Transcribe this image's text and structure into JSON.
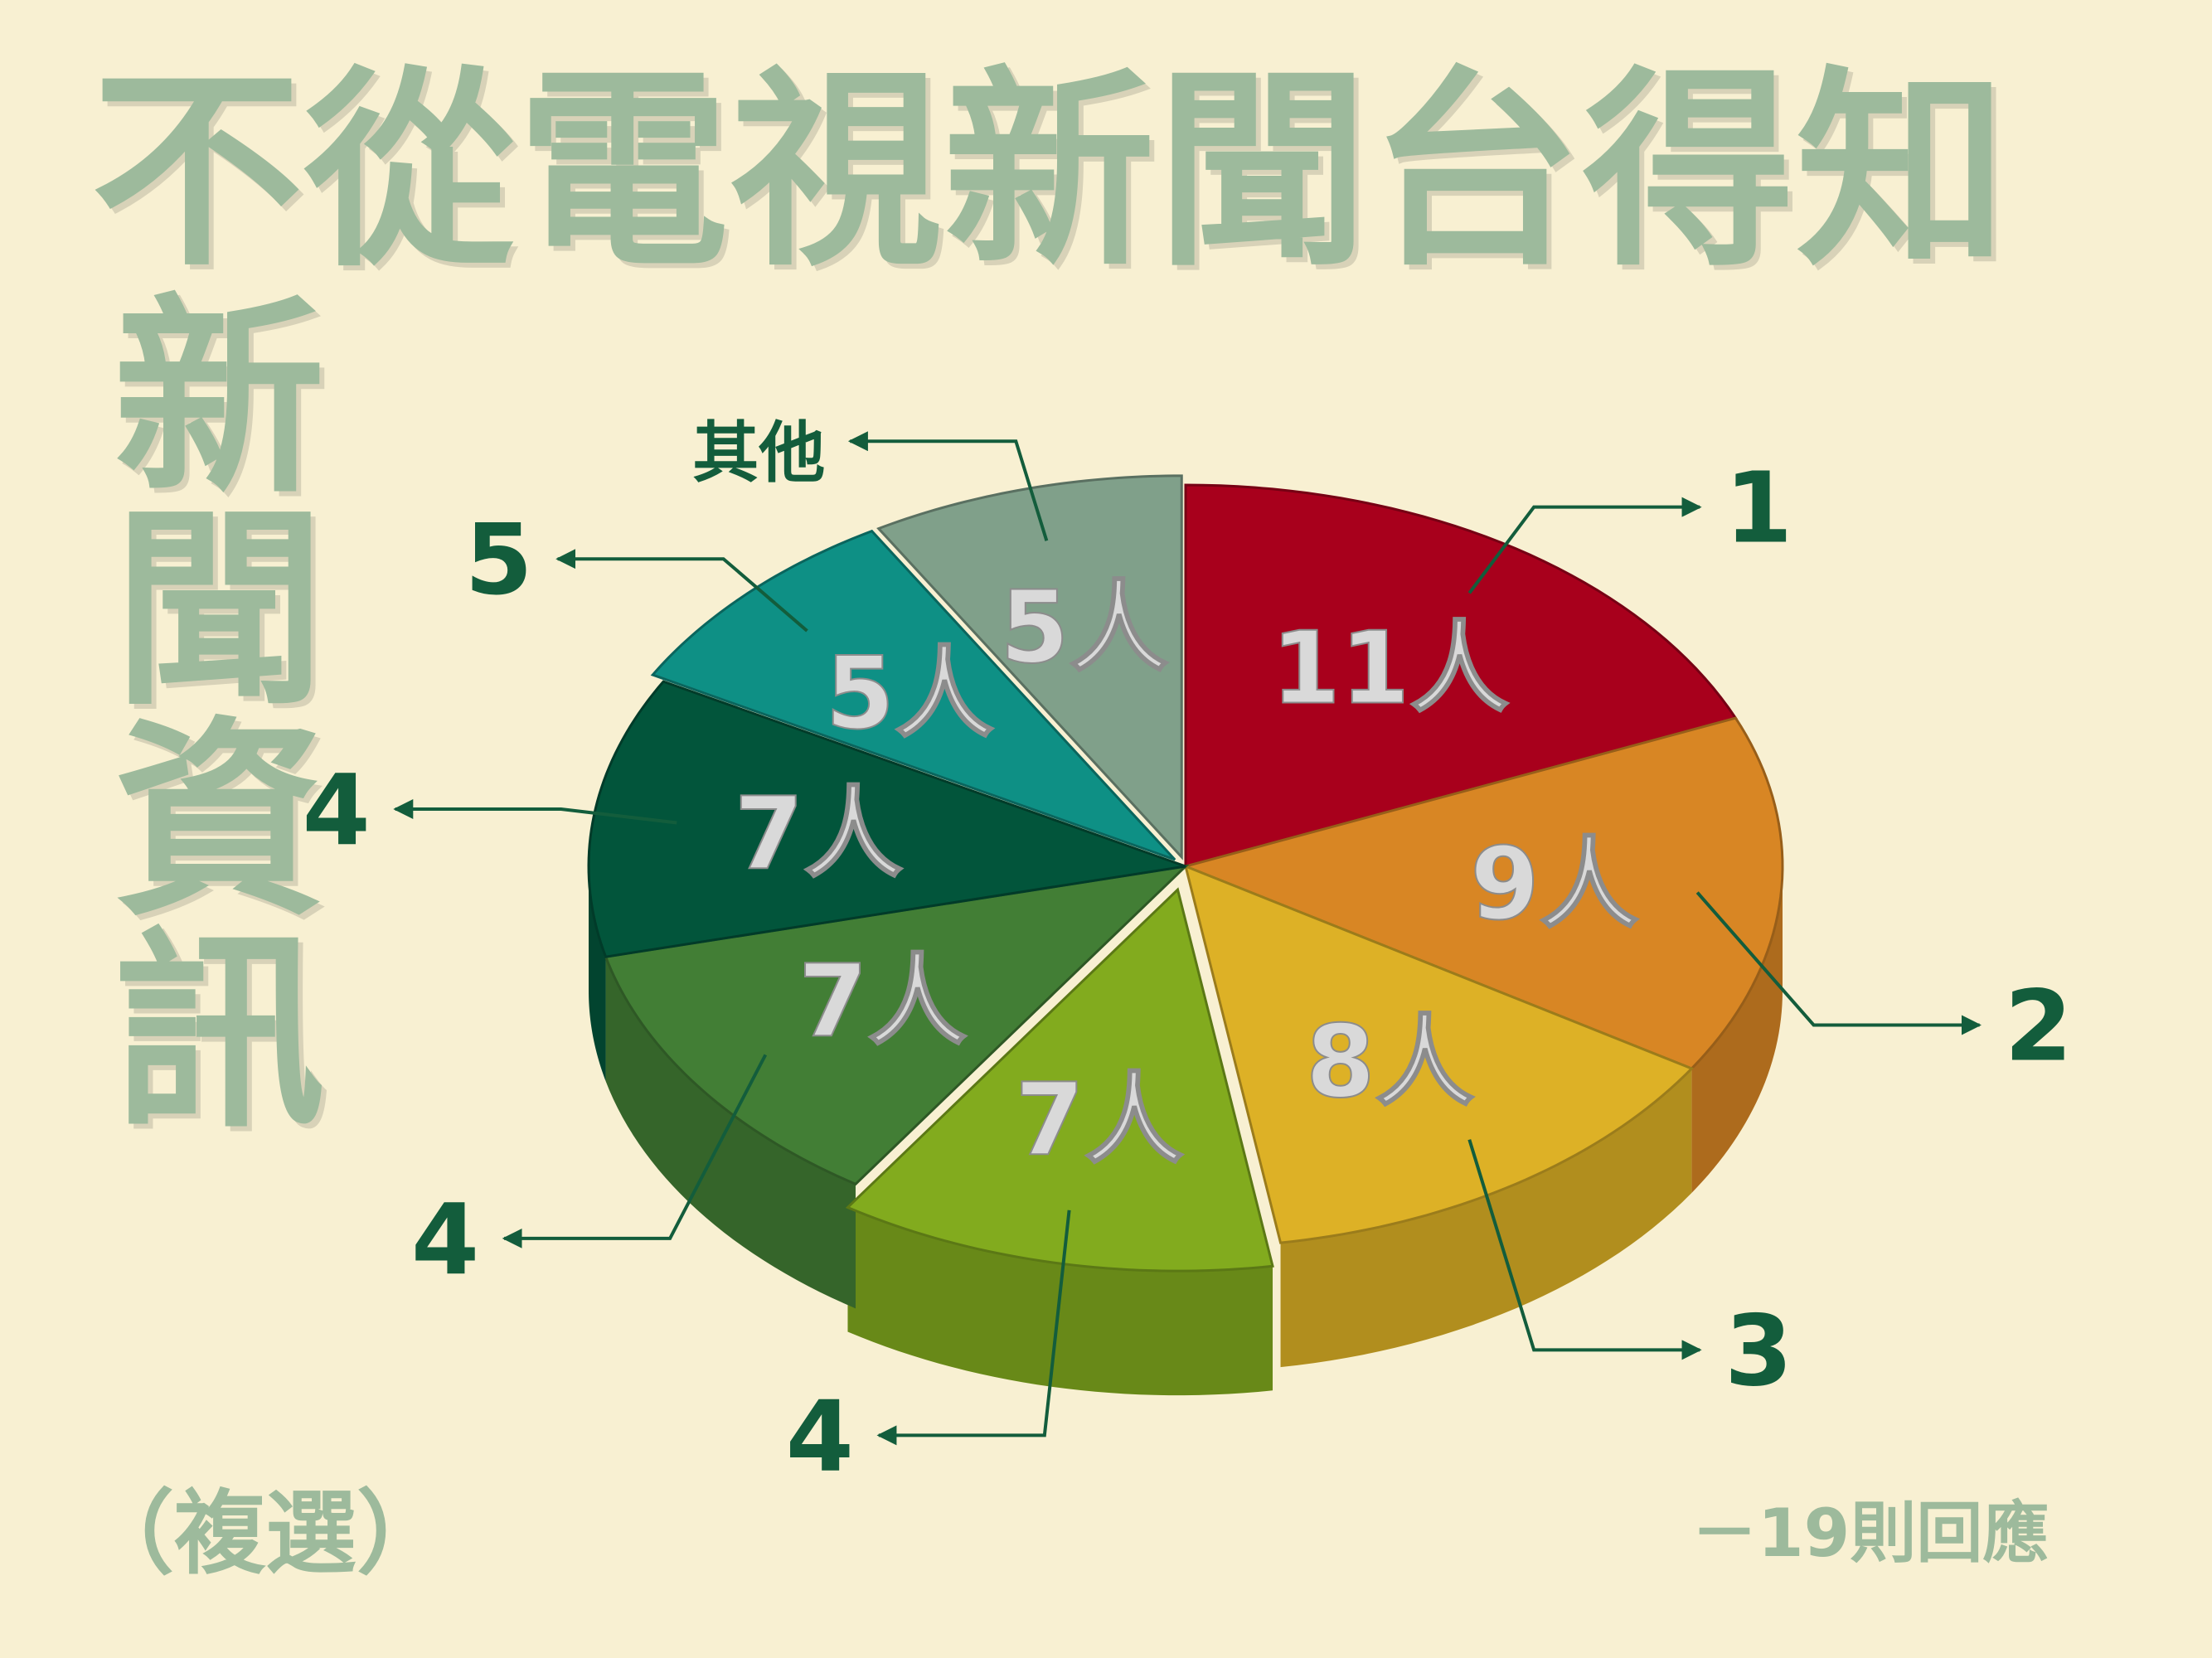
{
  "title": {
    "line1": "不從電視新聞台得知",
    "line2": "新聞資訊"
  },
  "note_multi": "（複選）",
  "responses": "－19則回應",
  "chart_data": {
    "type": "pie",
    "unit": "人",
    "slices": [
      {
        "rank": "1",
        "value": 11,
        "label": "11人",
        "color": "#a8001c"
      },
      {
        "rank": "2",
        "value": 9,
        "label": "9人",
        "color": "#d88624"
      },
      {
        "rank": "3",
        "value": 8,
        "label": "8人",
        "color": "#ddb126"
      },
      {
        "rank": "4",
        "value": 7,
        "label": "7人",
        "color": "#82ab1e"
      },
      {
        "rank": "4",
        "value": 7,
        "label": "7人",
        "color": "#427e35"
      },
      {
        "rank": "4",
        "value": 7,
        "label": "7人",
        "color": "#02553b"
      },
      {
        "rank": "5",
        "value": 5,
        "label": "5人",
        "color": "#0e9085"
      },
      {
        "rank": "其他",
        "value": 5,
        "label": "5人",
        "color": "#80a08a"
      }
    ]
  }
}
